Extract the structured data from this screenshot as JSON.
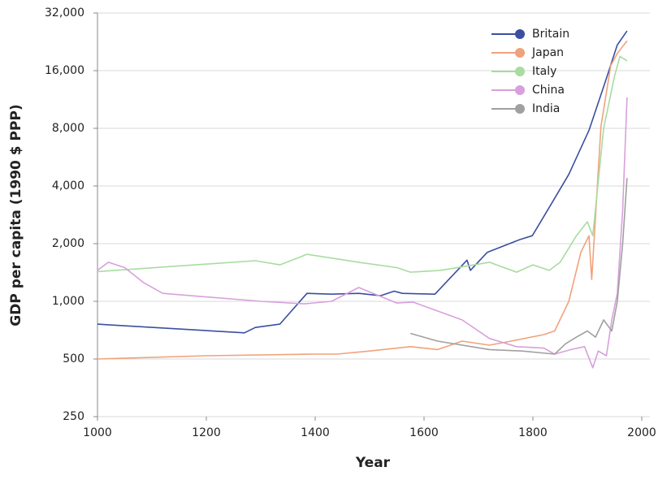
{
  "chart_data": {
    "type": "line",
    "x_label": "Year",
    "y_label": "GDP per capita (1990 $ PPP)",
    "xlim": [
      1000,
      2000
    ],
    "xticks": [
      1000,
      1200,
      1400,
      1600,
      1800,
      2000
    ],
    "ylim": [
      250,
      32000
    ],
    "log_y": true,
    "grid": true,
    "legend": "upper right",
    "yticks": [
      250,
      500,
      {
        "value": 1000,
        "label": "1,000"
      },
      {
        "value": 2000,
        "label": "2,000"
      },
      {
        "value": 4000,
        "label": "4,000"
      },
      {
        "value": 8000,
        "label": "8,000"
      },
      {
        "value": 16000,
        "label": "16,000"
      },
      {
        "value": 32000,
        "label": "32,000"
      }
    ],
    "series": [
      {
        "name": "Britain",
        "color": "#3a4fa0",
        "x": [
          1000,
          1270,
          1290,
          1335,
          1385,
          1430,
          1480,
          1520,
          1545,
          1560,
          1620,
          1679,
          1685,
          1716,
          1776,
          1799,
          1836,
          1866,
          1903,
          1933,
          1955,
          1973
        ],
        "values": [
          760,
          685,
          730,
          760,
          1100,
          1090,
          1100,
          1070,
          1130,
          1100,
          1090,
          1640,
          1450,
          1800,
          2100,
          2200,
          3300,
          4600,
          7800,
          14000,
          21800,
          25800
        ]
      },
      {
        "name": "Japan",
        "color": "#f0a27b",
        "x": [
          1000,
          1200,
          1400,
          1440,
          1500,
          1575,
          1625,
          1670,
          1720,
          1760,
          1820,
          1840,
          1866,
          1888,
          1903,
          1908,
          1925,
          1943,
          1955,
          1973
        ],
        "values": [
          500,
          520,
          530,
          530,
          550,
          580,
          560,
          620,
          590,
          620,
          670,
          700,
          1000,
          1800,
          2200,
          1300,
          8200,
          17000,
          19700,
          22900
        ]
      },
      {
        "name": "Italy",
        "color": "#a8dca0",
        "x": [
          1000,
          1290,
          1335,
          1385,
          1480,
          1550,
          1575,
          1630,
          1720,
          1770,
          1800,
          1830,
          1850,
          1880,
          1900,
          1910,
          1930,
          1950,
          1960,
          1973
        ],
        "values": [
          1430,
          1630,
          1550,
          1760,
          1600,
          1500,
          1420,
          1450,
          1600,
          1420,
          1550,
          1450,
          1600,
          2200,
          2600,
          2200,
          8000,
          15000,
          19000,
          18000
        ]
      },
      {
        "name": "China",
        "color": "#d8a0dc",
        "x": [
          1000,
          1020,
          1050,
          1085,
          1120,
          1300,
          1380,
          1430,
          1480,
          1550,
          1580,
          1670,
          1720,
          1770,
          1820,
          1840,
          1870,
          1895,
          1910,
          1920,
          1935,
          1945,
          1955,
          1965,
          1973
        ],
        "values": [
          1450,
          1600,
          1500,
          1250,
          1100,
          1000,
          970,
          1000,
          1180,
          980,
          990,
          800,
          640,
          580,
          570,
          530,
          560,
          580,
          450,
          550,
          520,
          800,
          1100,
          3000,
          11600
        ]
      },
      {
        "name": "India",
        "color": "#a0a0a0",
        "x": [
          1575,
          1625,
          1720,
          1780,
          1840,
          1860,
          1880,
          1900,
          1915,
          1930,
          1945,
          1955,
          1965,
          1973
        ],
        "values": [
          680,
          620,
          560,
          550,
          530,
          600,
          650,
          700,
          650,
          800,
          700,
          1000,
          2000,
          4400
        ]
      }
    ]
  }
}
